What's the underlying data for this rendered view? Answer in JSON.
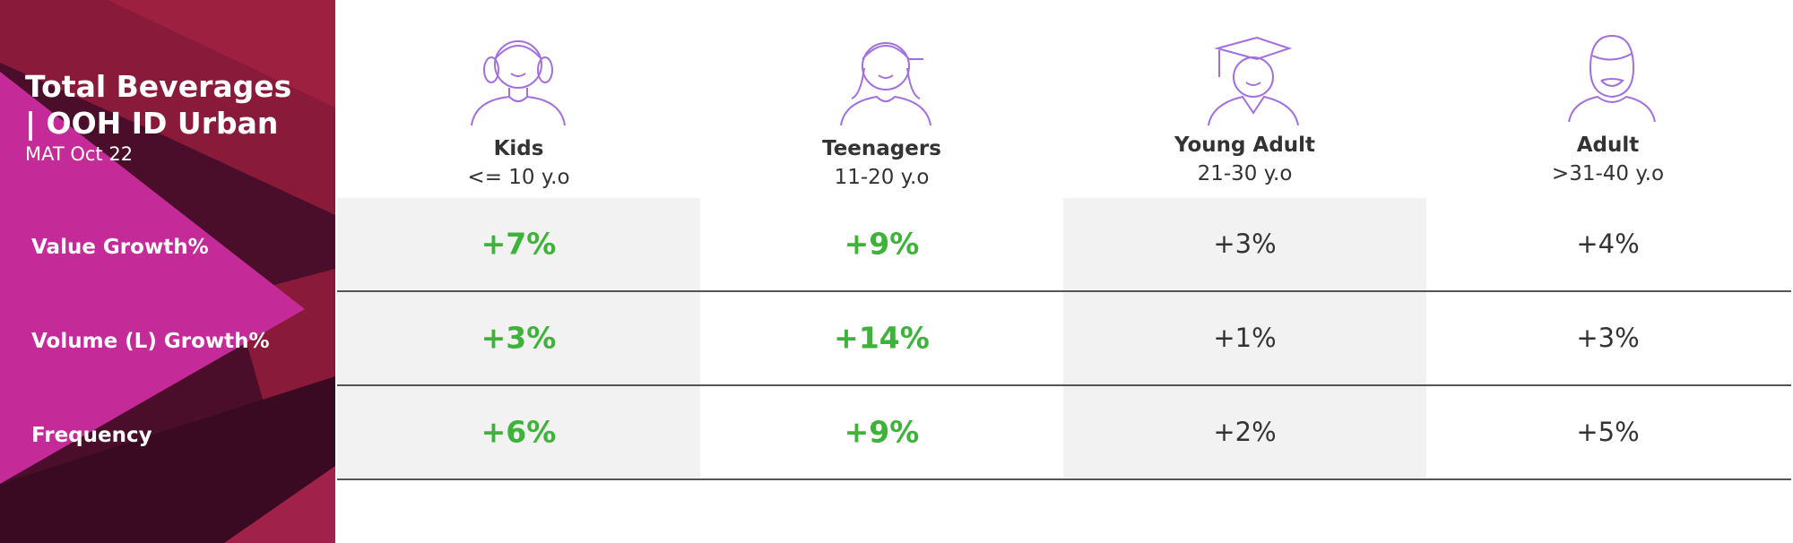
{
  "header": {
    "title": "Total Beverages | OOH ID Urban",
    "subtitle": "MAT Oct 22"
  },
  "table": {
    "columns": [
      {
        "name": "Kids",
        "age": "<= 10 y.o"
      },
      {
        "name": "Teenagers",
        "age": "11-20 y.o"
      },
      {
        "name": "Young Adult",
        "age": "21-30 y.o"
      },
      {
        "name": "Adult",
        "age": ">31-40 y.o"
      }
    ],
    "row_labels": [
      "Value Growth%",
      "Volume (L) Growth%",
      "Frequency"
    ],
    "rows": [
      [
        "+7%",
        "+9%",
        "+3%",
        "+4%"
      ],
      [
        "+3%",
        "+14%",
        "+1%",
        "+3%"
      ],
      [
        "+6%",
        "+9%",
        "+2%",
        "+5%"
      ]
    ]
  }
}
